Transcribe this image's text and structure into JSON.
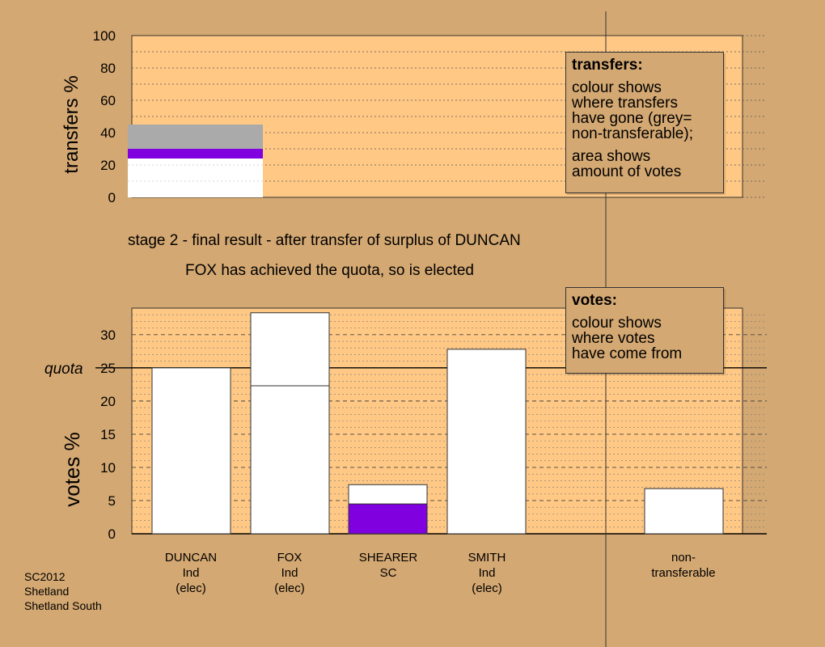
{
  "meta": {
    "label": "SC2012",
    "council": "Shetland",
    "ward": "Shetland South"
  },
  "colors": {
    "background": "#d4a872",
    "plot": "#ffc885",
    "transfer_grey": "#aaaaaa",
    "transfer_purple": "#8000e0",
    "bar_white": "#ffffff",
    "shearer_purple": "#8000e0"
  },
  "captions": {
    "stage": "stage 2 - final result - after transfer of surplus of DUNCAN",
    "elected": "FOX has achieved the quota, so is elected"
  },
  "legend_transfers": {
    "title": "transfers:",
    "line1": "colour shows",
    "line2": "where transfers",
    "line3": "have gone (grey=",
    "line4": "non-transferable);",
    "line5": "area shows",
    "line6": "amount of votes"
  },
  "legend_votes": {
    "title": "votes:",
    "line1": "colour shows",
    "line2": "where votes",
    "line3": "have come from"
  },
  "candidates": [
    {
      "name": "DUNCAN",
      "party": "Ind",
      "status": "(elec)"
    },
    {
      "name": "FOX",
      "party": "Ind",
      "status": "(elec)"
    },
    {
      "name": "SHEARER",
      "party": "SC",
      "status": ""
    },
    {
      "name": "SMITH",
      "party": "Ind",
      "status": "(elec)"
    },
    {
      "name": "non-",
      "party": "transferable",
      "status": ""
    }
  ],
  "chart_data": [
    {
      "type": "bar",
      "ylabel": "transfers %",
      "ylim": [
        0,
        100
      ],
      "yticks": [
        0,
        20,
        40,
        60,
        80,
        100
      ],
      "grid": "dotted",
      "segments": [
        {
          "color": "white",
          "from": 0,
          "to": 24
        },
        {
          "color": "purple",
          "from": 24,
          "to": 30
        },
        {
          "color": "grey",
          "from": 30,
          "to": 45
        }
      ]
    },
    {
      "type": "bar",
      "ylabel": "votes %",
      "ylim": [
        0,
        34
      ],
      "yticks": [
        0,
        5,
        10,
        15,
        20,
        25,
        30
      ],
      "grid": "dotted",
      "quota": 25,
      "quota_label": "quota",
      "categories": [
        "DUNCAN",
        "FOX",
        "SHEARER",
        "SMITH",
        "non-transferable"
      ],
      "series": [
        {
          "values": [
            25,
            22.3,
            0,
            27.8,
            0
          ],
          "color": "white"
        },
        {
          "values": [
            0,
            11,
            0,
            0,
            6.8
          ],
          "color": "white"
        },
        {
          "values": [
            0,
            0,
            4.5,
            0,
            0
          ],
          "color": "purple"
        },
        {
          "values": [
            0,
            0,
            2.9,
            0,
            0
          ],
          "color": "white"
        }
      ]
    }
  ]
}
